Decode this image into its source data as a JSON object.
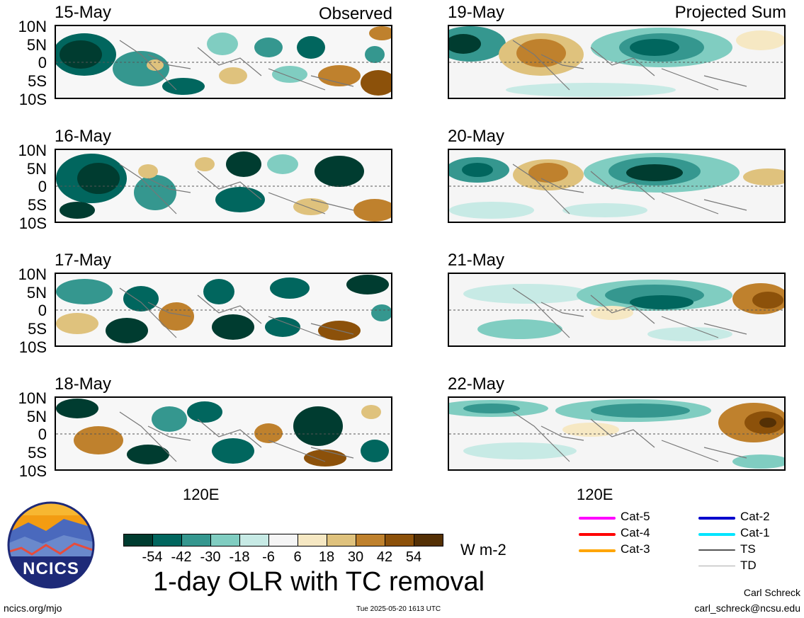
{
  "left_tag": "Observed",
  "right_tag": "Projected Sum",
  "panels_left": [
    {
      "date": "15-May"
    },
    {
      "date": "16-May"
    },
    {
      "date": "17-May"
    },
    {
      "date": "18-May"
    }
  ],
  "panels_right": [
    {
      "date": "19-May"
    },
    {
      "date": "20-May"
    },
    {
      "date": "21-May"
    },
    {
      "date": "22-May"
    }
  ],
  "lat_labels": [
    "10N",
    "5N",
    "0",
    "5S",
    "10S"
  ],
  "lon_label": "120E",
  "colorbar": {
    "colors": [
      "#003c30",
      "#01665e",
      "#35978f",
      "#80cdc1",
      "#c7eae5",
      "#f5f5f5",
      "#f6e8c3",
      "#dfc27d",
      "#bf812d",
      "#8c510a",
      "#543005"
    ],
    "ticks": [
      "-54",
      "-42",
      "-30",
      "-18",
      "-6",
      "6",
      "18",
      "30",
      "42",
      "54"
    ],
    "units": "W m-2"
  },
  "main_title": "1-day OLR with TC removal",
  "legend": {
    "col1": [
      {
        "label": "Cat-5",
        "color": "#ff00ff"
      },
      {
        "label": "Cat-4",
        "color": "#ff0000"
      },
      {
        "label": "Cat-3",
        "color": "#ffa500"
      }
    ],
    "col2": [
      {
        "label": "Cat-2",
        "color": "#0000cd"
      },
      {
        "label": "Cat-1",
        "color": "#00e5ff"
      },
      {
        "label": "TS",
        "color": "#555555"
      },
      {
        "label": "TD",
        "color": "#aaaaaa"
      }
    ]
  },
  "logo_text": "NCICS",
  "footer": {
    "url": "ncics.org/mjo",
    "timestamp": "Tue 2025-05-20 1613 UTC",
    "author": "Carl Schreck",
    "email": "carl_schreck@ncsu.edu"
  }
}
